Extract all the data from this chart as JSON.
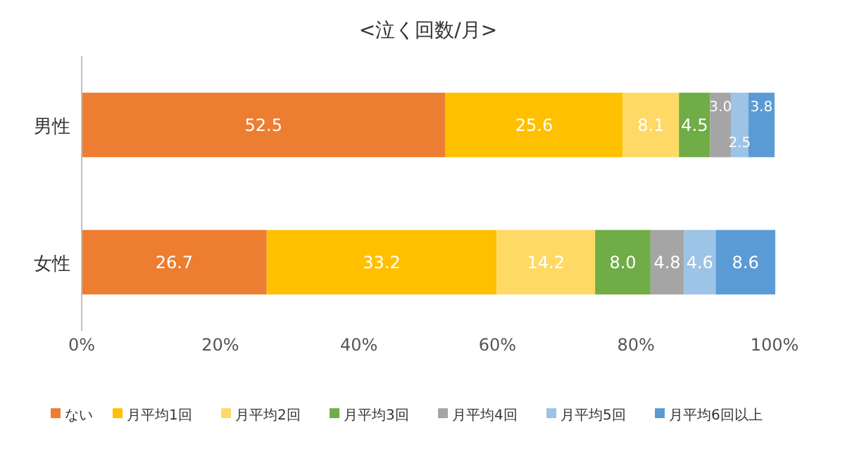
{
  "chart_data": {
    "type": "bar",
    "orientation": "horizontal",
    "stacked": true,
    "title": "<泣く回数/月>",
    "categories": [
      "男性",
      "女性"
    ],
    "series": [
      {
        "name": "ない",
        "color": "#ed7d31",
        "values": [
          52.5,
          26.7
        ],
        "value_labels": [
          "52.5",
          "26.7"
        ]
      },
      {
        "name": "月平均1回",
        "color": "#ffc000",
        "values": [
          25.6,
          33.2
        ],
        "value_labels": [
          "25.6",
          "33.2"
        ]
      },
      {
        "name": "月平均2回",
        "color": "#ffd966",
        "values": [
          8.1,
          14.2
        ],
        "value_labels": [
          "8.1",
          "14.2"
        ]
      },
      {
        "name": "月平均3回",
        "color": "#70ad47",
        "values": [
          4.5,
          8.0
        ],
        "value_labels": [
          "4.5",
          "8.0"
        ]
      },
      {
        "name": "月平均4回",
        "color": "#a5a5a5",
        "values": [
          3.0,
          4.8
        ],
        "value_labels": [
          "3.0",
          "4.8"
        ]
      },
      {
        "name": "月平均5回",
        "color": "#9dc3e6",
        "values": [
          2.5,
          4.6
        ],
        "value_labels": [
          "2.5",
          "4.6"
        ]
      },
      {
        "name": "月平均6回以上",
        "color": "#5b9bd5",
        "values": [
          3.8,
          8.6
        ],
        "value_labels": [
          "3.8",
          "8.6"
        ]
      }
    ],
    "xlim": [
      0,
      100
    ],
    "xticks": [
      {
        "value": 0,
        "label": "0%"
      },
      {
        "value": 20,
        "label": "20%"
      },
      {
        "value": 40,
        "label": "40%"
      },
      {
        "value": 60,
        "label": "60%"
      },
      {
        "value": 80,
        "label": "80%"
      },
      {
        "value": 100,
        "label": "100%"
      }
    ],
    "legend": "bottom",
    "grid": false
  }
}
